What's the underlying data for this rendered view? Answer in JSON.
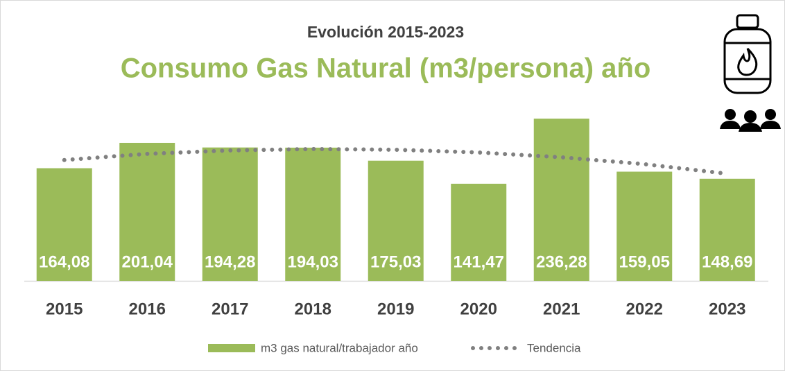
{
  "chart_data": {
    "type": "bar",
    "title": "Evolución 2015-2023",
    "subtitle": "Consumo Gas Natural (m3/persona) año",
    "categories": [
      "2015",
      "2016",
      "2017",
      "2018",
      "2019",
      "2020",
      "2021",
      "2022",
      "2023"
    ],
    "series": [
      {
        "name": "m3 gas natural/trabajador año",
        "color": "#9bbb59",
        "values": [
          164.08,
          201.04,
          194.28,
          194.03,
          175.03,
          141.47,
          236.28,
          159.05,
          148.69
        ],
        "value_labels": [
          "164,08",
          "201,04",
          "194,28",
          "194,03",
          "175,03",
          "141,47",
          "236,28",
          "159,05",
          "148,69"
        ]
      },
      {
        "name": "Tendencia",
        "color": "#808080",
        "line": "dotted",
        "values": [
          176,
          185,
          190,
          192,
          191,
          187,
          180,
          170,
          156
        ]
      }
    ],
    "ylim": [
      0,
      250
    ]
  }
}
